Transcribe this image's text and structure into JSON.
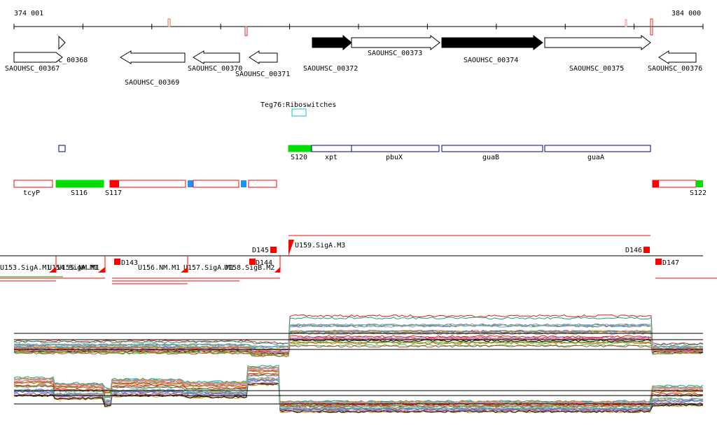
{
  "axis": {
    "start_label": "374 001",
    "end_label": "384 000"
  },
  "genes_top": [
    {
      "id": "SAOUHSC_00368",
      "style": "open",
      "dir": "right"
    },
    {
      "id": "SAOUHSC_00367",
      "style": "open",
      "dir": "right"
    },
    {
      "id": "SAOUHSC_00369",
      "style": "open",
      "dir": "left"
    },
    {
      "id": "SAOUHSC_00370",
      "style": "open",
      "dir": "left"
    },
    {
      "id": "SAOUHSC_00371",
      "style": "open",
      "dir": "left"
    },
    {
      "id": "SAOUHSC_00372",
      "style": "filled",
      "dir": "right"
    },
    {
      "id": "SAOUHSC_00373",
      "style": "open",
      "dir": "right"
    },
    {
      "id": "SAOUHSC_00374",
      "style": "filled",
      "dir": "right"
    },
    {
      "id": "SAOUHSC_00375",
      "style": "open",
      "dir": "right"
    },
    {
      "id": "SAOUHSC_00376",
      "style": "open",
      "dir": "left"
    }
  ],
  "riboswitch": {
    "label": "Teg76:Riboswitches",
    "color": "#00c8d2"
  },
  "operon_blue": {
    "labels": [
      "S120",
      "xpt",
      "pbuX",
      "guaB",
      "guaA"
    ],
    "color": "#000080"
  },
  "segments_red": {
    "labels": [
      "tcyP",
      "S116",
      "S117",
      "S122"
    ],
    "color": "#ff0000",
    "green": "#00dd00",
    "blue": "#1e90ff"
  },
  "promoters": {
    "labels": [
      "D145",
      "U159.SigA.M3",
      "D146",
      "D143",
      "D144",
      "D147",
      "U153.SigA.M1",
      "U154.SigA.M1",
      "U155.NM.M1",
      "U156.NM.M1",
      "U157.SigA.M1",
      "U158.SigB.M2"
    ]
  },
  "colors": {
    "axis": "#000000",
    "filled_gene": "#000000",
    "red": "#ff0000"
  }
}
